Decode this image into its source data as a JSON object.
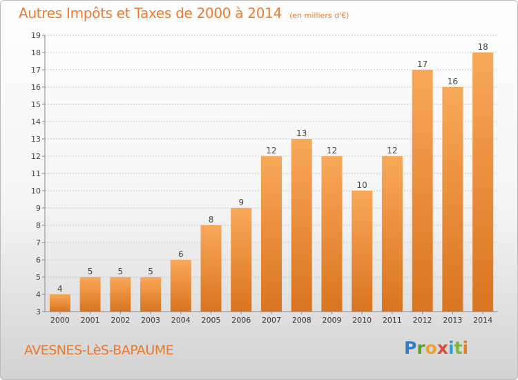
{
  "header": {
    "title": "Autres Impôts et Taxes de 2000 à 2014",
    "unit": "(en milliers d'€)"
  },
  "footer": {
    "commune": "AVESNES-LèS-BAPAUME",
    "logo": [
      "P",
      "r",
      "o",
      "x",
      "i",
      "t",
      "i"
    ]
  },
  "colors": {
    "bar_top": "#f9a85a",
    "bar_bottom": "#d9741f",
    "title": "#f07a2a",
    "grid": "#c8c8c8"
  },
  "chart_data": {
    "type": "bar",
    "title": "Autres Impôts et Taxes de 2000 à 2014",
    "subtitle": "(en milliers d'€)",
    "categories": [
      "2000",
      "2001",
      "2002",
      "2003",
      "2004",
      "2005",
      "2006",
      "2007",
      "2008",
      "2009",
      "2010",
      "2011",
      "2012",
      "2013",
      "2014"
    ],
    "values": [
      4,
      5,
      5,
      5,
      6,
      8,
      9,
      12,
      13,
      12,
      10,
      12,
      17,
      16,
      18
    ],
    "ylim": [
      3,
      19
    ],
    "yticks": [
      3,
      4,
      5,
      6,
      7,
      8,
      9,
      10,
      11,
      12,
      13,
      14,
      15,
      16,
      17,
      18,
      19
    ],
    "grid": true,
    "data_labels": true
  }
}
